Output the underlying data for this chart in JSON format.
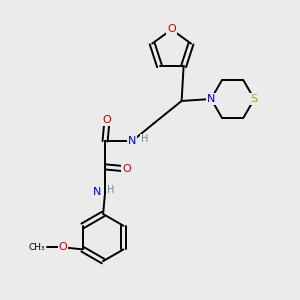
{
  "background_color": "#ebebeb",
  "atom_colors": {
    "C": "#000000",
    "N": "#0000cc",
    "O": "#cc0000",
    "S": "#aaaa00",
    "H": "#5f8f8f"
  },
  "figsize": [
    3.0,
    3.0
  ],
  "dpi": 100
}
